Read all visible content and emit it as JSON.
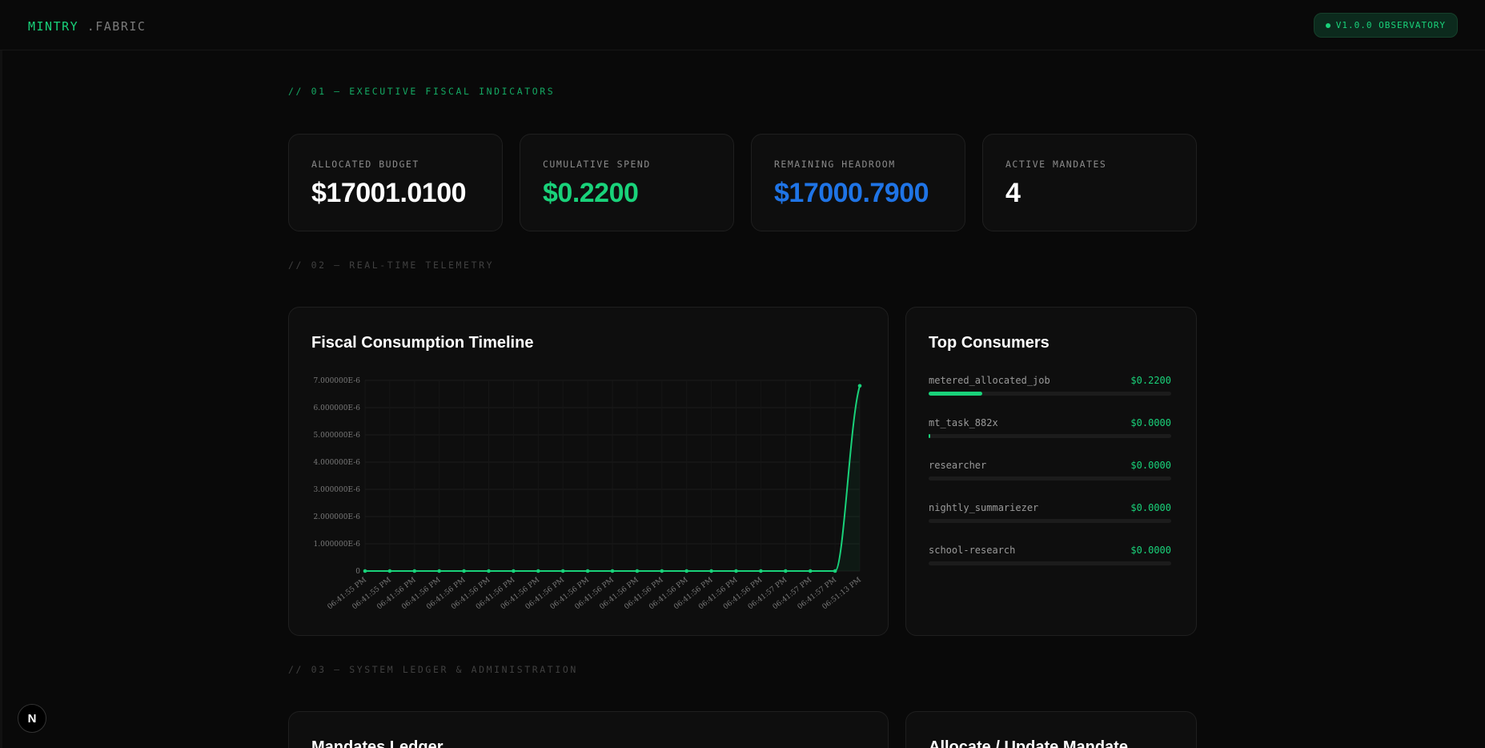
{
  "brand": {
    "name": "MINTRY",
    "suffix": ".FABRIC"
  },
  "version_badge": "V1.0.0 OBSERVATORY",
  "sections": {
    "fiscal": "// 01 — EXECUTIVE FISCAL INDICATORS",
    "telemetry": "// 02 — REAL-TIME TELEMETRY",
    "ledger": "// 03 — SYSTEM LEDGER & ADMINISTRATION"
  },
  "kpis": [
    {
      "label": "ALLOCATED BUDGET",
      "value": "$17001.0100",
      "color": "#ffffff"
    },
    {
      "label": "CUMULATIVE SPEND",
      "value": "$0.2200",
      "color": "#19d27a"
    },
    {
      "label": "REMAINING HEADROOM",
      "value": "$17000.7900",
      "color": "#1f74e6"
    },
    {
      "label": "ACTIVE MANDATES",
      "value": "4",
      "color": "#ffffff"
    }
  ],
  "timeline": {
    "title": "Fiscal Consumption Timeline",
    "accent": "#19d27a"
  },
  "chart_data": {
    "type": "line",
    "title": "Fiscal Consumption Timeline",
    "xlabel": "",
    "ylabel": "",
    "ylim": [
      0,
      7e-06
    ],
    "yticks": [
      "0",
      "1.000000E-6",
      "2.000000E-6",
      "3.000000E-6",
      "4.000000E-6",
      "5.000000E-6",
      "6.000000E-6",
      "7.000000E-6"
    ],
    "x": [
      "06:41:55 PM",
      "06:41:55 PM",
      "06:41:56 PM",
      "06:41:56 PM",
      "06:41:56 PM",
      "06:41:56 PM",
      "06:41:56 PM",
      "06:41:56 PM",
      "06:41:56 PM",
      "06:41:56 PM",
      "06:41:56 PM",
      "06:41:56 PM",
      "06:41:56 PM",
      "06:41:56 PM",
      "06:41:56 PM",
      "06:41:56 PM",
      "06:41:56 PM",
      "06:41:57 PM",
      "06:41:57 PM",
      "06:41:57 PM",
      "06:51:13 PM"
    ],
    "series": [
      {
        "values": [
          0,
          0,
          0,
          0,
          0,
          0,
          0,
          0,
          0,
          0,
          0,
          0,
          0,
          0,
          0,
          0,
          0,
          0,
          0,
          0,
          6.8e-06
        ]
      }
    ],
    "grid": true
  },
  "top_consumers": {
    "title": "Top Consumers",
    "items": [
      {
        "name": "metered_allocated_job",
        "value": "$0.2200",
        "share": 0.22
      },
      {
        "name": "mt_task_882x",
        "value": "$0.0000",
        "share": 0.005
      },
      {
        "name": "researcher",
        "value": "$0.0000",
        "share": 0
      },
      {
        "name": "nightly_summariezer",
        "value": "$0.0000",
        "share": 0
      },
      {
        "name": "school-research",
        "value": "$0.0000",
        "share": 0
      }
    ]
  },
  "ledger": {
    "title": "Mandates Ledger",
    "form_title": "Allocate / Update Mandate"
  },
  "dev_badge": "N"
}
